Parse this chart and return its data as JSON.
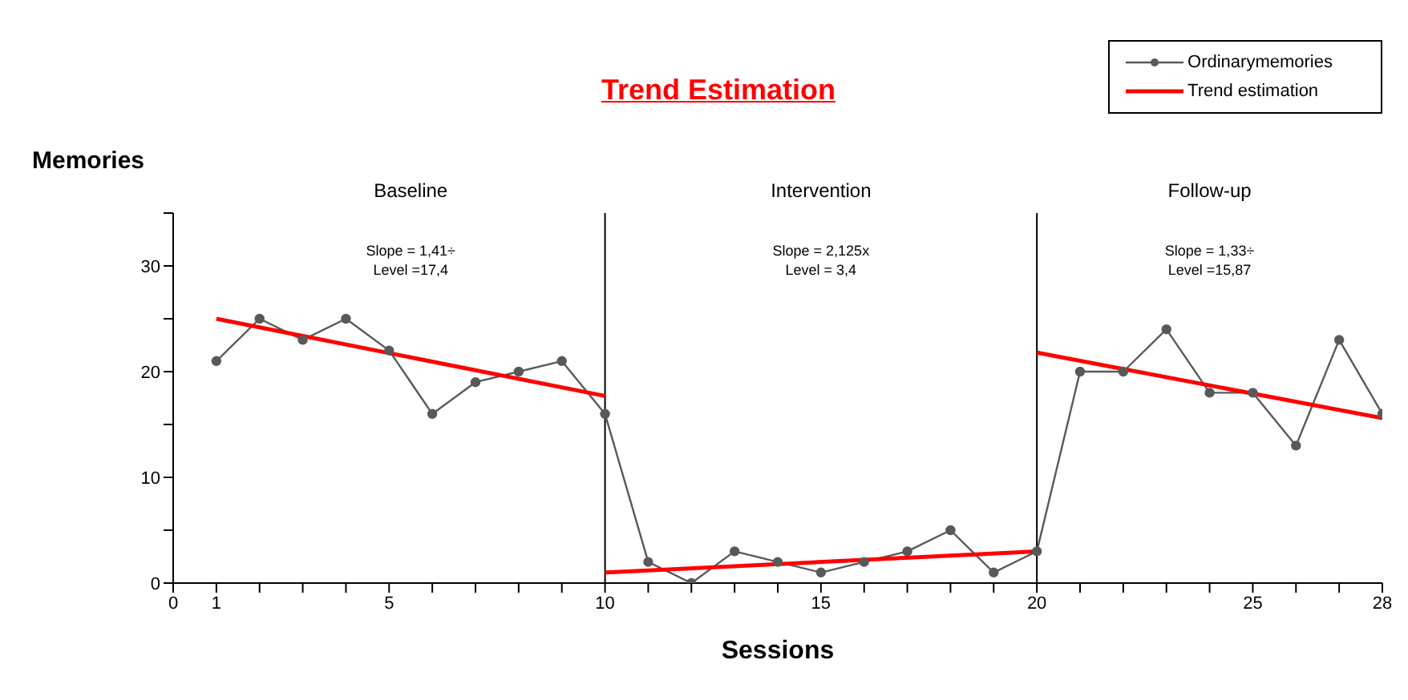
{
  "chart_data": {
    "type": "line",
    "title": "Trend Estimation",
    "xlabel": "Sessions",
    "ylabel": "Memories",
    "xlim": [
      0,
      28
    ],
    "xticks": [
      0,
      1,
      {
        "value": 2,
        "label": null
      },
      {
        "value": 3,
        "label": null
      },
      {
        "value": 4,
        "label": null
      },
      5,
      {
        "value": 6,
        "label": null
      },
      {
        "value": 7,
        "label": null
      },
      {
        "value": 8,
        "label": null
      },
      {
        "value": 9,
        "label": null
      },
      10,
      {
        "value": 11,
        "label": null
      },
      {
        "value": 12,
        "label": null
      },
      {
        "value": 13,
        "label": null
      },
      {
        "value": 14,
        "label": null
      },
      15,
      {
        "value": 16,
        "label": null
      },
      {
        "value": 17,
        "label": null
      },
      {
        "value": 18,
        "label": null
      },
      {
        "value": 19,
        "label": null
      },
      20,
      {
        "value": 21,
        "label": null
      },
      {
        "value": 22,
        "label": null
      },
      {
        "value": 23,
        "label": null
      },
      {
        "value": 24,
        "label": null
      },
      25,
      {
        "value": 26,
        "label": null
      },
      {
        "value": 27,
        "label": null
      },
      28
    ],
    "ylim": [
      0,
      35
    ],
    "yticks": [
      0,
      {
        "value": 5,
        "label": null
      },
      10,
      {
        "value": 15,
        "label": null
      },
      20,
      {
        "value": 25,
        "label": null
      },
      30,
      {
        "value": 35,
        "label": null
      }
    ],
    "grid": false,
    "legend": "top right",
    "series": [
      {
        "name": "Ordinarymemories",
        "color": "#595959",
        "marker": "circle",
        "x": [
          1,
          2,
          3,
          4,
          5,
          6,
          7,
          8,
          9,
          10,
          11,
          12,
          13,
          14,
          15,
          16,
          17,
          18,
          19,
          20,
          21,
          22,
          23,
          24,
          25,
          26,
          27,
          28
        ],
        "values": [
          21,
          25,
          23,
          25,
          22,
          16,
          19,
          20,
          21,
          16,
          2,
          0,
          3,
          2,
          1,
          2,
          3,
          5,
          1,
          3,
          20,
          20,
          24,
          18,
          18,
          13,
          23,
          16
        ]
      },
      {
        "name": "Trend estimation",
        "color": "#ff0000",
        "marker": "none",
        "x": [
          1,
          10
        ],
        "values": [
          25,
          17.7
        ]
      },
      {
        "color": "#ff0000",
        "marker": "none",
        "x": [
          10,
          20
        ],
        "values": [
          1,
          3
        ]
      },
      {
        "color": "#ff0000",
        "marker": "none",
        "x": [
          20,
          28
        ],
        "values": [
          21.8,
          15.6
        ]
      }
    ],
    "ref_lines": [
      {
        "axis": "x",
        "value": 10,
        "color": "#000000"
      },
      {
        "axis": "x",
        "value": 20,
        "color": "#000000"
      }
    ],
    "annotations": [
      "Baseline",
      "Intervention",
      "Follow-up",
      "Slope = 1,41÷\nLevel =17,4",
      "Slope = 2,125x\nLevel = 3,4",
      "Slope = 1,33÷\nLevel =15,87"
    ]
  }
}
